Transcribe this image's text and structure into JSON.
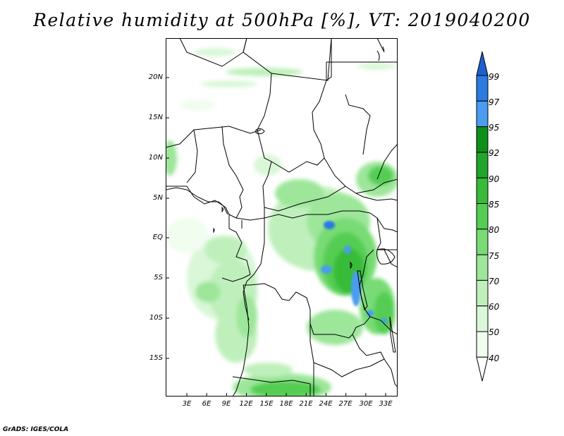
{
  "title": "Relative humidity at 500hPa [%], VT: 2019040200",
  "lat_labels": [
    "20N",
    "15N",
    "10N",
    "5N",
    "EQ",
    "5S",
    "10S",
    "15S"
  ],
  "lon_labels": [
    "3E",
    "6E",
    "9E",
    "12E",
    "15E",
    "18E",
    "21E",
    "24E",
    "27E",
    "30E",
    "33E"
  ],
  "colorbar": {
    "labels": [
      "99",
      "97",
      "95",
      "92",
      "90",
      "85",
      "80",
      "75",
      "70",
      "60",
      "50",
      "40"
    ],
    "colors": [
      "#1c5fd0",
      "#2a7ae0",
      "#4a9cf0",
      "#0e8f1a",
      "#22a52b",
      "#38bb38",
      "#55cd52",
      "#78db74",
      "#9de69a",
      "#bff0bc",
      "#daf7d8",
      "#f0fdef",
      "#ffffff"
    ]
  },
  "credit": "GrADS: IGES/COLA"
}
